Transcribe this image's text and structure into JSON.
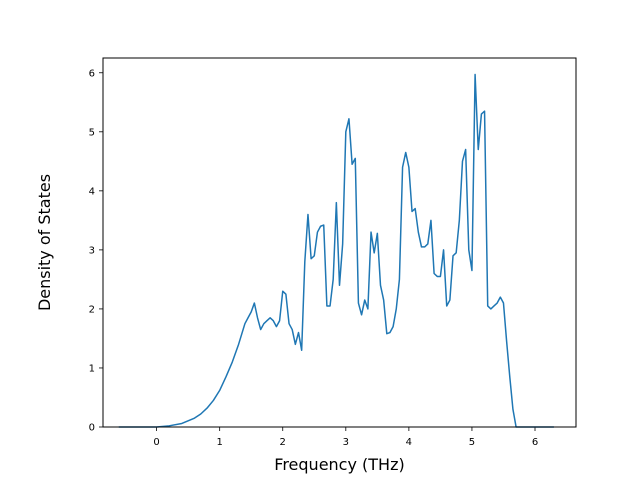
{
  "chart_data": {
    "type": "line",
    "title": "",
    "xlabel": "Frequency (THz)",
    "ylabel": "Density of States",
    "xlim": [
      -0.85,
      6.65
    ],
    "ylim": [
      0,
      6.25
    ],
    "xticks": [
      0,
      1,
      2,
      3,
      4,
      5,
      6
    ],
    "yticks": [
      0,
      1,
      2,
      3,
      4,
      5,
      6
    ],
    "grid": false,
    "legend": "none",
    "colors": {
      "line": "#1f77b4",
      "axes": "#000000",
      "background": "#ffffff"
    },
    "series": [
      {
        "x": [
          -0.6,
          -0.4,
          -0.2,
          0.0,
          0.2,
          0.4,
          0.6,
          0.7,
          0.8,
          0.9,
          1.0,
          1.1,
          1.2,
          1.3,
          1.4,
          1.45,
          1.5,
          1.55,
          1.6,
          1.65,
          1.7,
          1.75,
          1.8,
          1.85,
          1.9,
          1.95,
          2.0,
          2.05,
          2.1,
          2.15,
          2.2,
          2.25,
          2.3,
          2.35,
          2.4,
          2.45,
          2.5,
          2.55,
          2.6,
          2.65,
          2.7,
          2.75,
          2.8,
          2.85,
          2.9,
          2.95,
          3.0,
          3.05,
          3.1,
          3.15,
          3.2,
          3.25,
          3.3,
          3.35,
          3.4,
          3.45,
          3.5,
          3.55,
          3.6,
          3.65,
          3.7,
          3.75,
          3.8,
          3.85,
          3.9,
          3.95,
          4.0,
          4.05,
          4.1,
          4.15,
          4.2,
          4.25,
          4.3,
          4.35,
          4.4,
          4.45,
          4.5,
          4.55,
          4.6,
          4.65,
          4.7,
          4.75,
          4.8,
          4.85,
          4.9,
          4.95,
          5.0,
          5.05,
          5.1,
          5.15,
          5.2,
          5.25,
          5.3,
          5.35,
          5.4,
          5.45,
          5.5,
          5.55,
          5.6,
          5.65,
          5.7,
          5.75,
          5.8,
          6.0,
          6.3
        ],
        "y": [
          0,
          0,
          0,
          0,
          0.02,
          0.06,
          0.15,
          0.22,
          0.32,
          0.45,
          0.62,
          0.85,
          1.1,
          1.4,
          1.75,
          1.85,
          1.95,
          2.1,
          1.85,
          1.65,
          1.75,
          1.8,
          1.85,
          1.8,
          1.7,
          1.8,
          2.3,
          2.25,
          1.75,
          1.65,
          1.4,
          1.6,
          1.3,
          2.8,
          3.6,
          2.85,
          2.9,
          3.3,
          3.4,
          3.42,
          2.05,
          2.05,
          2.5,
          3.8,
          2.4,
          3.1,
          5.0,
          5.22,
          4.45,
          4.55,
          2.1,
          1.9,
          2.15,
          2.0,
          3.3,
          2.95,
          3.28,
          2.4,
          2.15,
          1.58,
          1.6,
          1.7,
          2.0,
          2.5,
          4.4,
          4.65,
          4.4,
          3.65,
          3.7,
          3.3,
          3.05,
          3.05,
          3.1,
          3.5,
          2.6,
          2.55,
          2.55,
          3.0,
          2.05,
          2.15,
          2.9,
          2.95,
          3.5,
          4.5,
          4.7,
          3.0,
          2.65,
          5.97,
          4.7,
          5.3,
          5.35,
          2.05,
          2.0,
          2.05,
          2.1,
          2.2,
          2.1,
          1.45,
          0.85,
          0.3,
          0,
          0,
          0,
          0,
          0
        ]
      }
    ]
  }
}
